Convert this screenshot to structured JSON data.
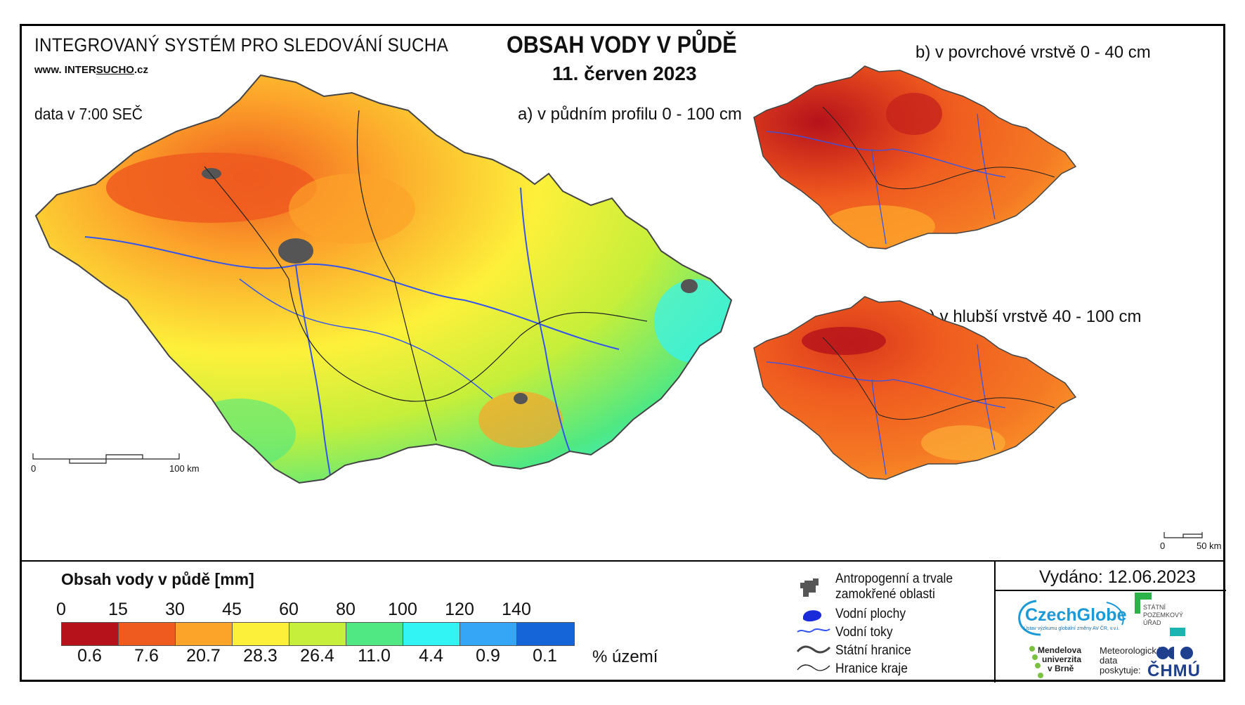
{
  "header": {
    "system_title": "INTEGROVANÝ SYSTÉM PRO SLEDOVÁNÍ SUCHA",
    "website_prefix": "www. INTER",
    "website_underlined": "SUCHO",
    "website_suffix": ".cz",
    "data_time": "data v 7:00 SEČ",
    "title": "OBSAH VODY V PŮDĚ",
    "date": "11. červen 2023"
  },
  "maps": {
    "a_label": "a) v půdním profilu 0 - 100 cm",
    "b_label": "b) v povrchové vrstvě 0 - 40 cm",
    "c_label": "c) v hlubší vrstvě 40 - 100 cm",
    "scale_main": {
      "start": "0",
      "end": "100 km"
    },
    "scale_small": {
      "start": "0",
      "end": "50 km"
    }
  },
  "legend": {
    "title": "Obsah vody v půdě  [mm]",
    "breaks": [
      "0",
      "15",
      "30",
      "45",
      "60",
      "80",
      "100",
      "120",
      "140"
    ],
    "colors": [
      "#b5121b",
      "#ef5b1f",
      "#fca32a",
      "#fdf03a",
      "#c5ef3a",
      "#4fe883",
      "#33f4f4",
      "#35a6f5",
      "#1565d8"
    ],
    "percent": [
      "0.6",
      "7.6",
      "20.7",
      "28.3",
      "26.4",
      "11.0",
      "4.4",
      "0.9",
      "0.1"
    ],
    "percent_unit": "% území"
  },
  "symbols": {
    "anthropogenic": "Antropogenní a trvale",
    "anthropogenic2": "zamokřené oblasti",
    "water_bodies": "Vodní plochy",
    "rivers": "Vodní toky",
    "state_border": "Státní hranice",
    "region_border": "Hranice kraje"
  },
  "footer": {
    "issued": "Vydáno: 12.06.2023",
    "czechglobe": "CzechGlobe",
    "czechglobe_sub": "Ústav výzkumu globální změny AV ČR, v.v.i.",
    "spu1": "STÁTNÍ",
    "spu2": "POZEMKOVÝ",
    "spu3": "ÚŘAD",
    "mendel1": "Mendelova",
    "mendel2": "univerzita",
    "mendel3": "v Brně",
    "met1": "Meteorologická",
    "met2": "data",
    "met3": "poskytuje:",
    "chmu": "ČHMÚ"
  }
}
